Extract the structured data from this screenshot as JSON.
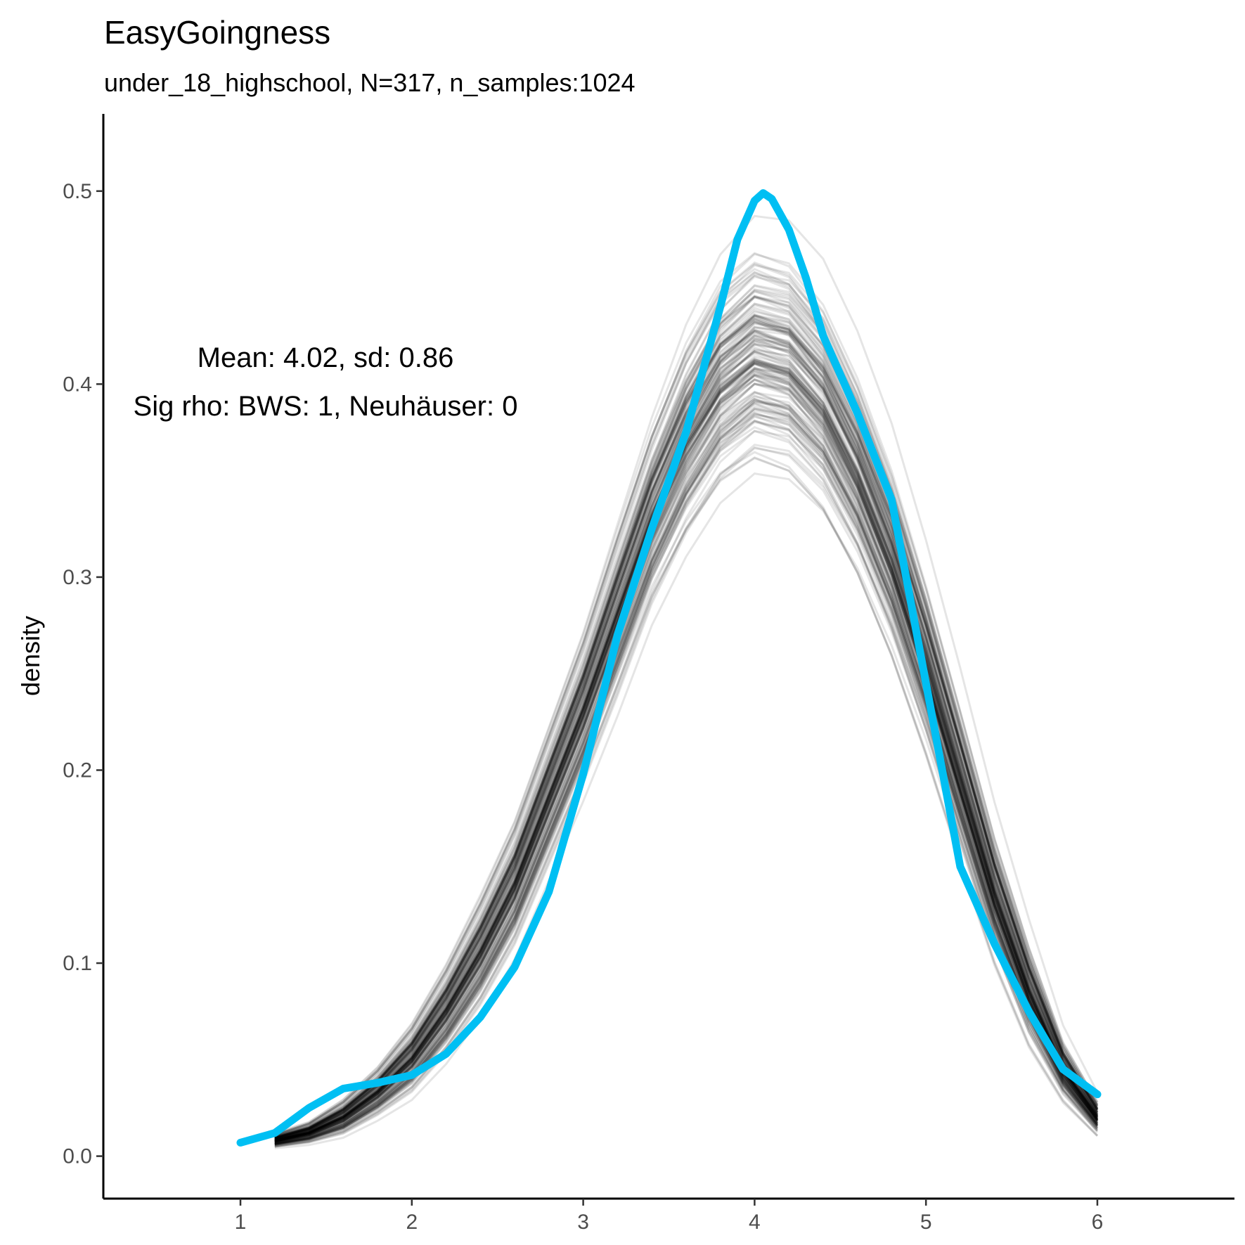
{
  "chart_data": {
    "type": "line",
    "title": "EasyGoingness",
    "subtitle": "under_18_highschool, N=317, n_samples:1024",
    "xlabel": "",
    "ylabel": "density",
    "xlim": [
      0.2,
      6.8
    ],
    "ylim": [
      -0.022,
      0.54
    ],
    "x_ticks": [
      "1",
      "2",
      "3",
      "4",
      "5",
      "6"
    ],
    "y_ticks": [
      "0.0",
      "0.1",
      "0.2",
      "0.3",
      "0.4",
      "0.5"
    ],
    "grid": false,
    "legend": "none",
    "annotations": [
      "Mean: 4.02, sd: 0.86",
      "Sig rho: BWS: 1, Neuhäuser: 0"
    ],
    "colors": {
      "observed": "#00BFF3",
      "samples": "#000000"
    },
    "series": [
      {
        "role": "observed",
        "x": [
          1.0,
          1.2,
          1.4,
          1.6,
          1.8,
          2.0,
          2.2,
          2.4,
          2.6,
          2.8,
          3.0,
          3.2,
          3.4,
          3.6,
          3.8,
          3.9,
          4.0,
          4.05,
          4.1,
          4.2,
          4.3,
          4.4,
          4.5,
          4.6,
          4.8,
          5.0,
          5.2,
          5.4,
          5.6,
          5.8,
          6.0
        ],
        "values": [
          0.007,
          0.012,
          0.025,
          0.035,
          0.038,
          0.042,
          0.053,
          0.072,
          0.098,
          0.137,
          0.198,
          0.27,
          0.325,
          0.375,
          0.44,
          0.475,
          0.495,
          0.499,
          0.496,
          0.48,
          0.455,
          0.425,
          0.405,
          0.385,
          0.34,
          0.245,
          0.15,
          0.11,
          0.075,
          0.045,
          0.032
        ]
      }
    ],
    "sampled_curves": {
      "count": 1024,
      "x": [
        1.2,
        1.4,
        1.6,
        1.8,
        2.0,
        2.2,
        2.4,
        2.6,
        2.8,
        3.0,
        3.2,
        3.4,
        3.6,
        3.8,
        4.0,
        4.2,
        4.4,
        4.6,
        4.8,
        5.0,
        5.2,
        5.4,
        5.6,
        5.8,
        6.0
      ],
      "median": [
        0.008,
        0.012,
        0.02,
        0.033,
        0.05,
        0.075,
        0.105,
        0.14,
        0.185,
        0.23,
        0.28,
        0.33,
        0.37,
        0.4,
        0.415,
        0.41,
        0.39,
        0.355,
        0.31,
        0.255,
        0.195,
        0.135,
        0.085,
        0.045,
        0.02
      ],
      "spread": [
        0.002,
        0.003,
        0.005,
        0.007,
        0.01,
        0.013,
        0.016,
        0.018,
        0.02,
        0.022,
        0.025,
        0.027,
        0.03,
        0.032,
        0.033,
        0.033,
        0.032,
        0.03,
        0.028,
        0.025,
        0.022,
        0.018,
        0.014,
        0.008,
        0.005
      ]
    }
  }
}
